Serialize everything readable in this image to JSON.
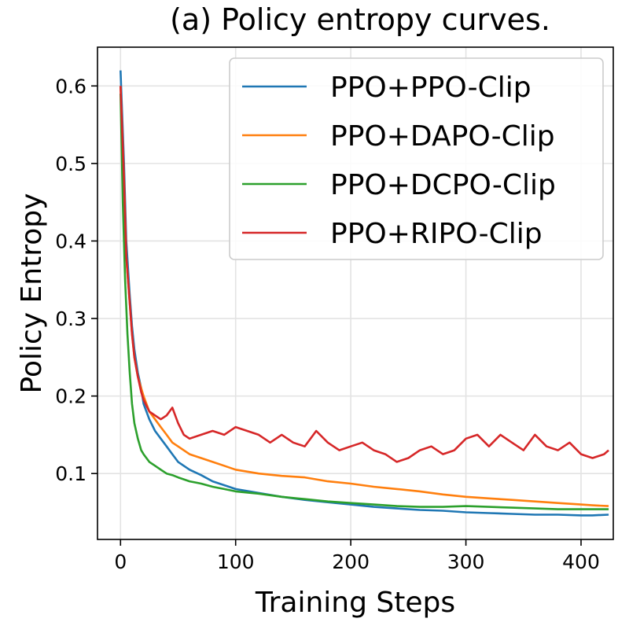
{
  "chart_data": {
    "type": "line",
    "title": "(a) Policy entropy curves.",
    "xlabel": "Training Steps",
    "ylabel": "Policy Entropy",
    "xlim": [
      -20,
      428
    ],
    "ylim": [
      0.015,
      0.65
    ],
    "xticks": [
      0,
      100,
      200,
      300,
      400
    ],
    "yticks": [
      0.1,
      0.2,
      0.3,
      0.4,
      0.5,
      0.6
    ],
    "xtick_labels": [
      "0",
      "100",
      "200",
      "300",
      "400"
    ],
    "ytick_labels": [
      "0.1",
      "0.2",
      "0.3",
      "0.4",
      "0.5",
      "0.6"
    ],
    "grid": true,
    "legend_position": "top-right",
    "series": [
      {
        "name": "PPO+PPO-Clip",
        "color": "#1f77b4",
        "x": [
          0,
          3,
          5,
          8,
          10,
          12,
          15,
          18,
          20,
          25,
          30,
          35,
          40,
          45,
          50,
          60,
          70,
          80,
          90,
          100,
          120,
          140,
          160,
          180,
          200,
          220,
          240,
          260,
          280,
          300,
          320,
          340,
          360,
          380,
          400,
          410,
          424
        ],
        "y": [
          0.62,
          0.5,
          0.4,
          0.33,
          0.29,
          0.26,
          0.23,
          0.21,
          0.19,
          0.17,
          0.155,
          0.145,
          0.135,
          0.125,
          0.115,
          0.105,
          0.098,
          0.09,
          0.085,
          0.08,
          0.075,
          0.07,
          0.066,
          0.063,
          0.06,
          0.057,
          0.055,
          0.053,
          0.052,
          0.05,
          0.049,
          0.048,
          0.047,
          0.047,
          0.046,
          0.046,
          0.047
        ]
      },
      {
        "name": "PPO+DAPO-Clip",
        "color": "#ff7f0e",
        "x": [
          0,
          3,
          5,
          8,
          10,
          12,
          15,
          18,
          20,
          25,
          30,
          35,
          40,
          45,
          50,
          60,
          70,
          80,
          90,
          100,
          120,
          140,
          160,
          180,
          200,
          220,
          240,
          260,
          280,
          300,
          320,
          340,
          360,
          380,
          400,
          410,
          424
        ],
        "y": [
          0.6,
          0.48,
          0.38,
          0.32,
          0.28,
          0.25,
          0.225,
          0.21,
          0.2,
          0.18,
          0.17,
          0.16,
          0.15,
          0.14,
          0.135,
          0.125,
          0.12,
          0.115,
          0.11,
          0.105,
          0.1,
          0.097,
          0.095,
          0.09,
          0.087,
          0.083,
          0.08,
          0.077,
          0.073,
          0.07,
          0.068,
          0.066,
          0.064,
          0.062,
          0.06,
          0.059,
          0.058
        ]
      },
      {
        "name": "PPO+DCPO-Clip",
        "color": "#2ca02c",
        "x": [
          0,
          2,
          4,
          6,
          8,
          10,
          12,
          15,
          18,
          20,
          25,
          30,
          35,
          40,
          45,
          50,
          60,
          70,
          80,
          90,
          100,
          120,
          140,
          160,
          180,
          200,
          220,
          240,
          260,
          280,
          300,
          320,
          340,
          360,
          380,
          400,
          410,
          424
        ],
        "y": [
          0.59,
          0.45,
          0.35,
          0.28,
          0.23,
          0.19,
          0.165,
          0.145,
          0.13,
          0.125,
          0.115,
          0.11,
          0.105,
          0.1,
          0.098,
          0.095,
          0.09,
          0.087,
          0.083,
          0.08,
          0.077,
          0.074,
          0.07,
          0.067,
          0.064,
          0.062,
          0.06,
          0.058,
          0.057,
          0.057,
          0.058,
          0.057,
          0.056,
          0.055,
          0.054,
          0.054,
          0.054,
          0.054
        ]
      },
      {
        "name": "PPO+RIPO-Clip",
        "color": "#d62728",
        "x": [
          0,
          3,
          5,
          8,
          10,
          12,
          15,
          18,
          20,
          25,
          30,
          35,
          40,
          45,
          50,
          55,
          60,
          70,
          80,
          90,
          100,
          110,
          120,
          130,
          140,
          150,
          160,
          170,
          180,
          190,
          200,
          210,
          220,
          230,
          240,
          250,
          260,
          270,
          280,
          290,
          300,
          310,
          320,
          330,
          340,
          350,
          360,
          370,
          380,
          390,
          400,
          410,
          420,
          424
        ],
        "y": [
          0.6,
          0.48,
          0.38,
          0.32,
          0.28,
          0.25,
          0.225,
          0.205,
          0.195,
          0.18,
          0.175,
          0.17,
          0.175,
          0.185,
          0.165,
          0.15,
          0.145,
          0.15,
          0.155,
          0.15,
          0.16,
          0.155,
          0.15,
          0.14,
          0.15,
          0.14,
          0.135,
          0.155,
          0.14,
          0.13,
          0.135,
          0.14,
          0.13,
          0.125,
          0.115,
          0.12,
          0.13,
          0.135,
          0.125,
          0.13,
          0.145,
          0.15,
          0.135,
          0.15,
          0.14,
          0.13,
          0.15,
          0.135,
          0.13,
          0.14,
          0.125,
          0.12,
          0.125,
          0.13
        ]
      }
    ]
  }
}
